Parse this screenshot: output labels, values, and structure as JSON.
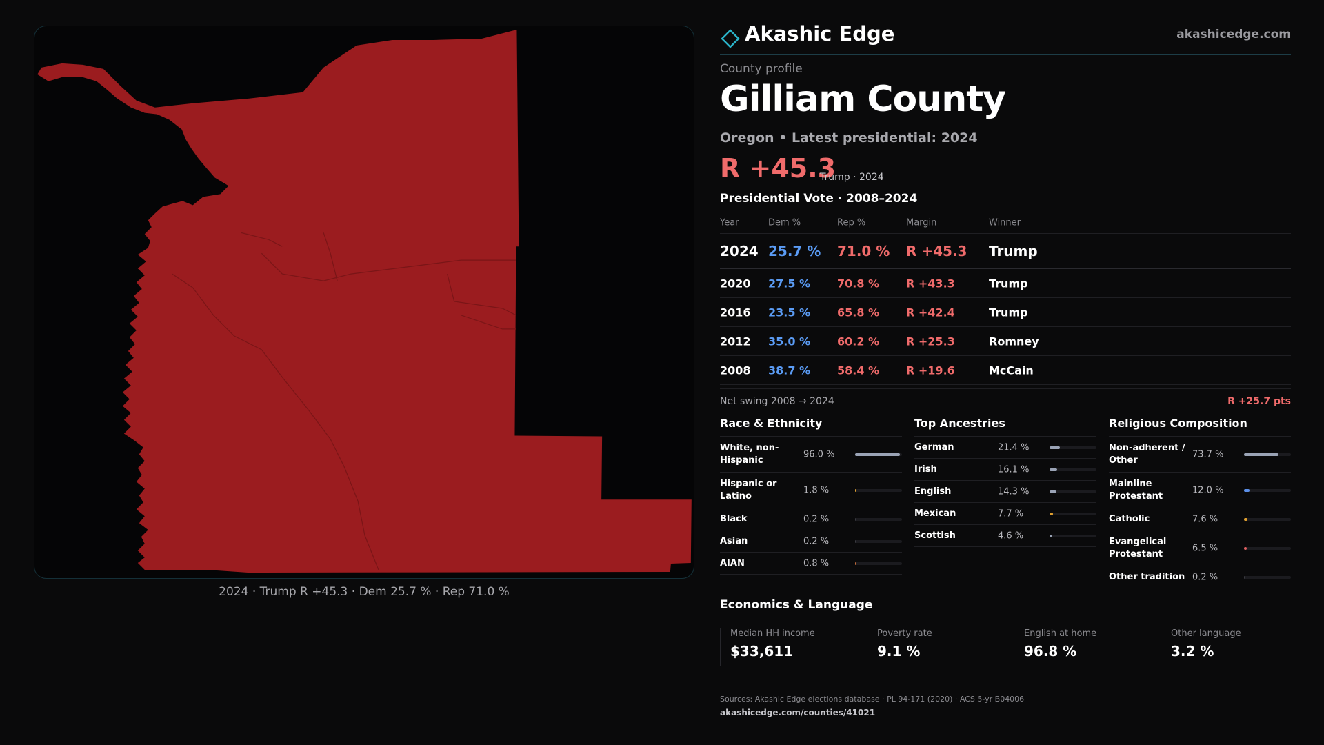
{
  "map": {
    "caption": "2024 · Trump R +45.3 · Dem 25.7 % · Rep 71.0 %",
    "fill_color": "#9b1c1f",
    "border_color": "#143038"
  },
  "brand": {
    "name": "Akashic Edge",
    "url": "akashicedge.com",
    "logo_icon": "diamond-icon"
  },
  "profile": {
    "eyebrow": "County profile",
    "county": "Gilliam County",
    "subtitle": "Oregon • Latest presidential: 2024",
    "headline_margin": "R +45.3",
    "headline_note": "Trump · 2024"
  },
  "vote": {
    "title": "Presidential Vote · 2008–2024",
    "headers": {
      "year": "Year",
      "dem": "Dem %",
      "rep": "Rep %",
      "margin": "Margin",
      "winner": "Winner"
    },
    "rows": [
      {
        "year": "2024",
        "dem": "25.7 %",
        "rep": "71.0 %",
        "margin": "R +45.3",
        "winner": "Trump"
      },
      {
        "year": "2020",
        "dem": "27.5 %",
        "rep": "70.8 %",
        "margin": "R +43.3",
        "winner": "Trump"
      },
      {
        "year": "2016",
        "dem": "23.5 %",
        "rep": "65.8 %",
        "margin": "R +42.4",
        "winner": "Trump"
      },
      {
        "year": "2012",
        "dem": "35.0 %",
        "rep": "60.2 %",
        "margin": "R +25.3",
        "winner": "Romney"
      },
      {
        "year": "2008",
        "dem": "38.7 %",
        "rep": "58.4 %",
        "margin": "R +19.6",
        "winner": "McCain"
      }
    ],
    "swing_label": "Net swing 2008 → 2024",
    "swing_value": "R +25.7 pts"
  },
  "race": {
    "title": "Race & Ethnicity",
    "items": [
      {
        "label": "White, non-Hispanic",
        "value": "96.0 %",
        "pct": 96.0,
        "color": "#9aa3b5"
      },
      {
        "label": "Hispanic or Latino",
        "value": "1.8 %",
        "pct": 1.8,
        "color": "#e0a030"
      },
      {
        "label": "Black",
        "value": "0.2 %",
        "pct": 0.2,
        "color": "#3a3a40"
      },
      {
        "label": "Asian",
        "value": "0.2 %",
        "pct": 0.2,
        "color": "#3a3a40"
      },
      {
        "label": "AIAN",
        "value": "0.8 %",
        "pct": 0.8,
        "color": "#c06a3a"
      }
    ]
  },
  "ancestry": {
    "title": "Top Ancestries",
    "items": [
      {
        "label": "German",
        "value": "21.4 %",
        "pct": 21.4,
        "color": "#9aa3b5"
      },
      {
        "label": "Irish",
        "value": "16.1 %",
        "pct": 16.1,
        "color": "#9aa3b5"
      },
      {
        "label": "English",
        "value": "14.3 %",
        "pct": 14.3,
        "color": "#9aa3b5"
      },
      {
        "label": "Mexican",
        "value": "7.7 %",
        "pct": 7.7,
        "color": "#e0a030"
      },
      {
        "label": "Scottish",
        "value": "4.6 %",
        "pct": 4.6,
        "color": "#9aa3b5"
      }
    ]
  },
  "religion": {
    "title": "Religious Composition",
    "items": [
      {
        "label": "Non-adherent / Other",
        "value": "73.7 %",
        "pct": 73.7,
        "color": "#9aa3b5"
      },
      {
        "label": "Mainline Protestant",
        "value": "12.0 %",
        "pct": 12.0,
        "color": "#5b8fe8"
      },
      {
        "label": "Catholic",
        "value": "7.6 %",
        "pct": 7.6,
        "color": "#e0a030"
      },
      {
        "label": "Evangelical Protestant",
        "value": "6.5 %",
        "pct": 6.5,
        "color": "#e06060"
      },
      {
        "label": "Other tradition",
        "value": "0.2 %",
        "pct": 0.2,
        "color": "#3a3a40"
      }
    ]
  },
  "economics": {
    "title": "Economics & Language",
    "cards": [
      {
        "label": "Median HH income",
        "value": "$33,611"
      },
      {
        "label": "Poverty rate",
        "value": "9.1 %"
      },
      {
        "label": "English at home",
        "value": "96.8 %"
      },
      {
        "label": "Other language",
        "value": "3.2 %"
      }
    ]
  },
  "footer": {
    "sources": "Sources: Akashic Edge elections database · PL 94-171 (2020) · ACS 5-yr B04006",
    "url": "akashicedge.com/counties/41021"
  }
}
